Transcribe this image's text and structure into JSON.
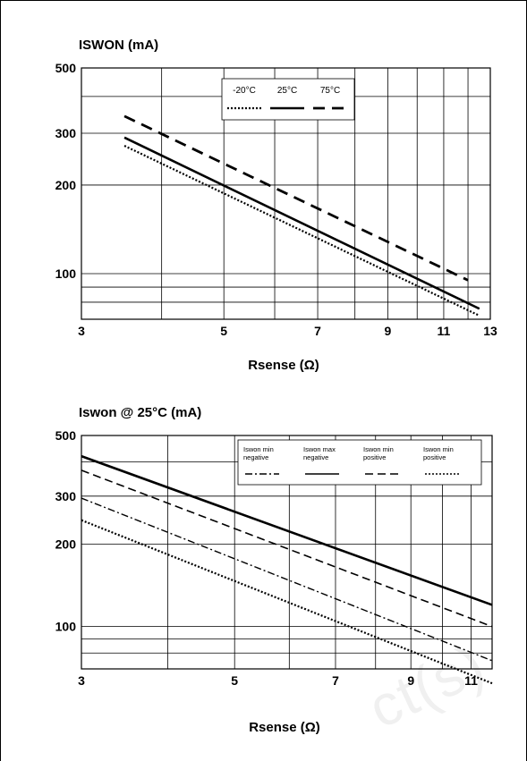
{
  "watermark": "ct(s)",
  "chart_data": [
    {
      "type": "line",
      "ylabel": "ISWON (mA)",
      "xlabel": "Rsense (Ω)",
      "xlim": [
        3,
        13
      ],
      "ylim": [
        70,
        500
      ],
      "yscale": "log",
      "x_ticks": [
        3,
        5,
        7,
        9,
        11,
        13
      ],
      "y_ticks": [
        100,
        200,
        300,
        500
      ],
      "legend": "top-center",
      "series": [
        {
          "name": "-20°C",
          "style": "dotted",
          "x": [
            3.5,
            12.5
          ],
          "y": [
            272,
            72
          ]
        },
        {
          "name": "25°C",
          "style": "solid",
          "x": [
            3.5,
            12.5
          ],
          "y": [
            290,
            76
          ]
        },
        {
          "name": "75°C",
          "style": "dashed",
          "x": [
            3.5,
            12
          ],
          "y": [
            343,
            95
          ]
        }
      ]
    },
    {
      "type": "line",
      "ylabel": "Iswon @ 25°C (mA)",
      "xlabel": "Rsense (Ω)",
      "xlim": [
        3,
        11.8
      ],
      "ylim": [
        70,
        500
      ],
      "yscale": "log",
      "x_ticks": [
        3,
        5,
        7,
        9,
        11
      ],
      "y_ticks": [
        100,
        200,
        300,
        500
      ],
      "legend": "top-right",
      "series": [
        {
          "name": "Iswon min negative",
          "style": "dashdot",
          "x": [
            3,
            11.8
          ],
          "y": [
            295,
            75
          ]
        },
        {
          "name": "Iswon max negative",
          "style": "solid",
          "x": [
            3,
            11.8
          ],
          "y": [
            420,
            120
          ]
        },
        {
          "name": "Iswon min positive",
          "style": "dashed",
          "x": [
            3,
            11.8
          ],
          "y": [
            373,
            100
          ]
        },
        {
          "name": "Iswon min positive",
          "style": "dotted",
          "x": [
            3,
            11.8
          ],
          "y": [
            245,
            62
          ]
        }
      ]
    }
  ]
}
